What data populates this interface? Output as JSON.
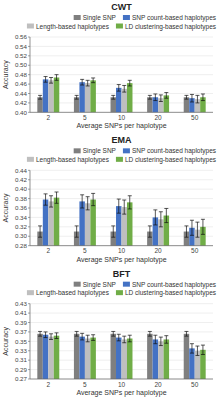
{
  "chart_data": [
    {
      "type": "bar",
      "title": "CWT",
      "ylabel": "Accuracy",
      "xlabel": "Average SNPs per haplotype",
      "categories": [
        "2",
        "5",
        "10",
        "20",
        "50"
      ],
      "series": [
        {
          "name": "Single SNP",
          "color": "#7f7f7f",
          "values": [
            0.432,
            0.432,
            0.432,
            0.432,
            0.432
          ],
          "errors": [
            0.004,
            0.004,
            0.004,
            0.004,
            0.004
          ]
        },
        {
          "name": "SNP count-based haplotypes",
          "color": "#4472C4",
          "values": [
            0.47,
            0.464,
            0.452,
            0.432,
            0.43
          ],
          "errors": [
            0.006,
            0.006,
            0.007,
            0.007,
            0.008
          ]
        },
        {
          "name": "Length-based haplotypes",
          "color": "#BFBFBF",
          "values": [
            0.468,
            0.462,
            0.45,
            0.43,
            0.428
          ],
          "errors": [
            0.006,
            0.006,
            0.007,
            0.007,
            0.008
          ]
        },
        {
          "name": "LD clustering-based haplotypes",
          "color": "#70AD47",
          "values": [
            0.474,
            0.468,
            0.462,
            0.436,
            0.432
          ],
          "errors": [
            0.006,
            0.005,
            0.006,
            0.006,
            0.007
          ]
        }
      ],
      "ylim": [
        0.4,
        0.56
      ],
      "yticks": [
        {
          "value": 0.4,
          "label": "0.40"
        },
        0.42,
        0.44,
        0.46,
        0.48,
        {
          "value": 0.5,
          "label": "0.50"
        },
        0.52,
        0.54,
        0.56
      ],
      "grid": true,
      "legend": "upper right"
    },
    {
      "type": "bar",
      "title": "EMA",
      "ylabel": "Accuracy",
      "xlabel": "Average SNPs per haplotype",
      "categories": [
        "2",
        "5",
        "10",
        "20",
        "50"
      ],
      "series": [
        {
          "name": "Single SNP",
          "color": "#7f7f7f",
          "values": [
            0.31,
            0.31,
            0.31,
            0.31,
            0.31
          ],
          "errors": [
            0.012,
            0.012,
            0.012,
            0.012,
            0.012
          ]
        },
        {
          "name": "SNP count-based haplotypes",
          "color": "#4472C4",
          "values": [
            0.378,
            0.374,
            0.364,
            0.34,
            0.318
          ],
          "errors": [
            0.012,
            0.014,
            0.015,
            0.016,
            0.016
          ]
        },
        {
          "name": "Length-based haplotypes",
          "color": "#BFBFBF",
          "values": [
            0.374,
            0.37,
            0.362,
            0.336,
            0.314
          ],
          "errors": [
            0.012,
            0.014,
            0.015,
            0.016,
            0.016
          ]
        },
        {
          "name": "LD clustering-based haplotypes",
          "color": "#70AD47",
          "values": [
            0.382,
            0.378,
            0.372,
            0.344,
            0.32
          ],
          "errors": [
            0.012,
            0.013,
            0.014,
            0.015,
            0.016
          ]
        }
      ],
      "ylim": [
        0.28,
        0.44
      ],
      "yticks": [
        0.28,
        {
          "value": 0.3,
          "label": "0.30"
        },
        0.32,
        0.34,
        0.36,
        0.38,
        {
          "value": 0.4,
          "label": "0.40"
        },
        0.42,
        0.44
      ],
      "grid": true,
      "legend": "upper right"
    },
    {
      "type": "bar",
      "title": "BFT",
      "ylabel": "Accuracy",
      "xlabel": "Average SNPs per haplotype",
      "categories": [
        "2",
        "5",
        "10",
        "20",
        "50"
      ],
      "series": [
        {
          "name": "Single SNP",
          "color": "#7f7f7f",
          "values": [
            0.366,
            0.366,
            0.366,
            0.366,
            0.366
          ],
          "errors": [
            0.005,
            0.005,
            0.005,
            0.005,
            0.005
          ]
        },
        {
          "name": "SNP count-based haplotypes",
          "color": "#4472C4",
          "values": [
            0.364,
            0.36,
            0.358,
            0.354,
            0.335
          ],
          "errors": [
            0.006,
            0.007,
            0.007,
            0.009,
            0.01
          ]
        },
        {
          "name": "Length-based haplotypes",
          "color": "#BFBFBF",
          "values": [
            0.36,
            0.356,
            0.354,
            0.35,
            0.33
          ],
          "errors": [
            0.006,
            0.007,
            0.007,
            0.009,
            0.01
          ]
        },
        {
          "name": "LD clustering-based haplotypes",
          "color": "#70AD47",
          "values": [
            0.362,
            0.358,
            0.356,
            0.354,
            0.332
          ],
          "errors": [
            0.006,
            0.006,
            0.007,
            0.008,
            0.01
          ]
        }
      ],
      "ylim": [
        0.27,
        0.43
      ],
      "yticks": [
        0.27,
        0.29,
        0.31,
        0.33,
        0.35,
        0.37,
        0.39,
        0.41,
        0.43
      ],
      "grid": true,
      "legend": "upper right"
    }
  ]
}
